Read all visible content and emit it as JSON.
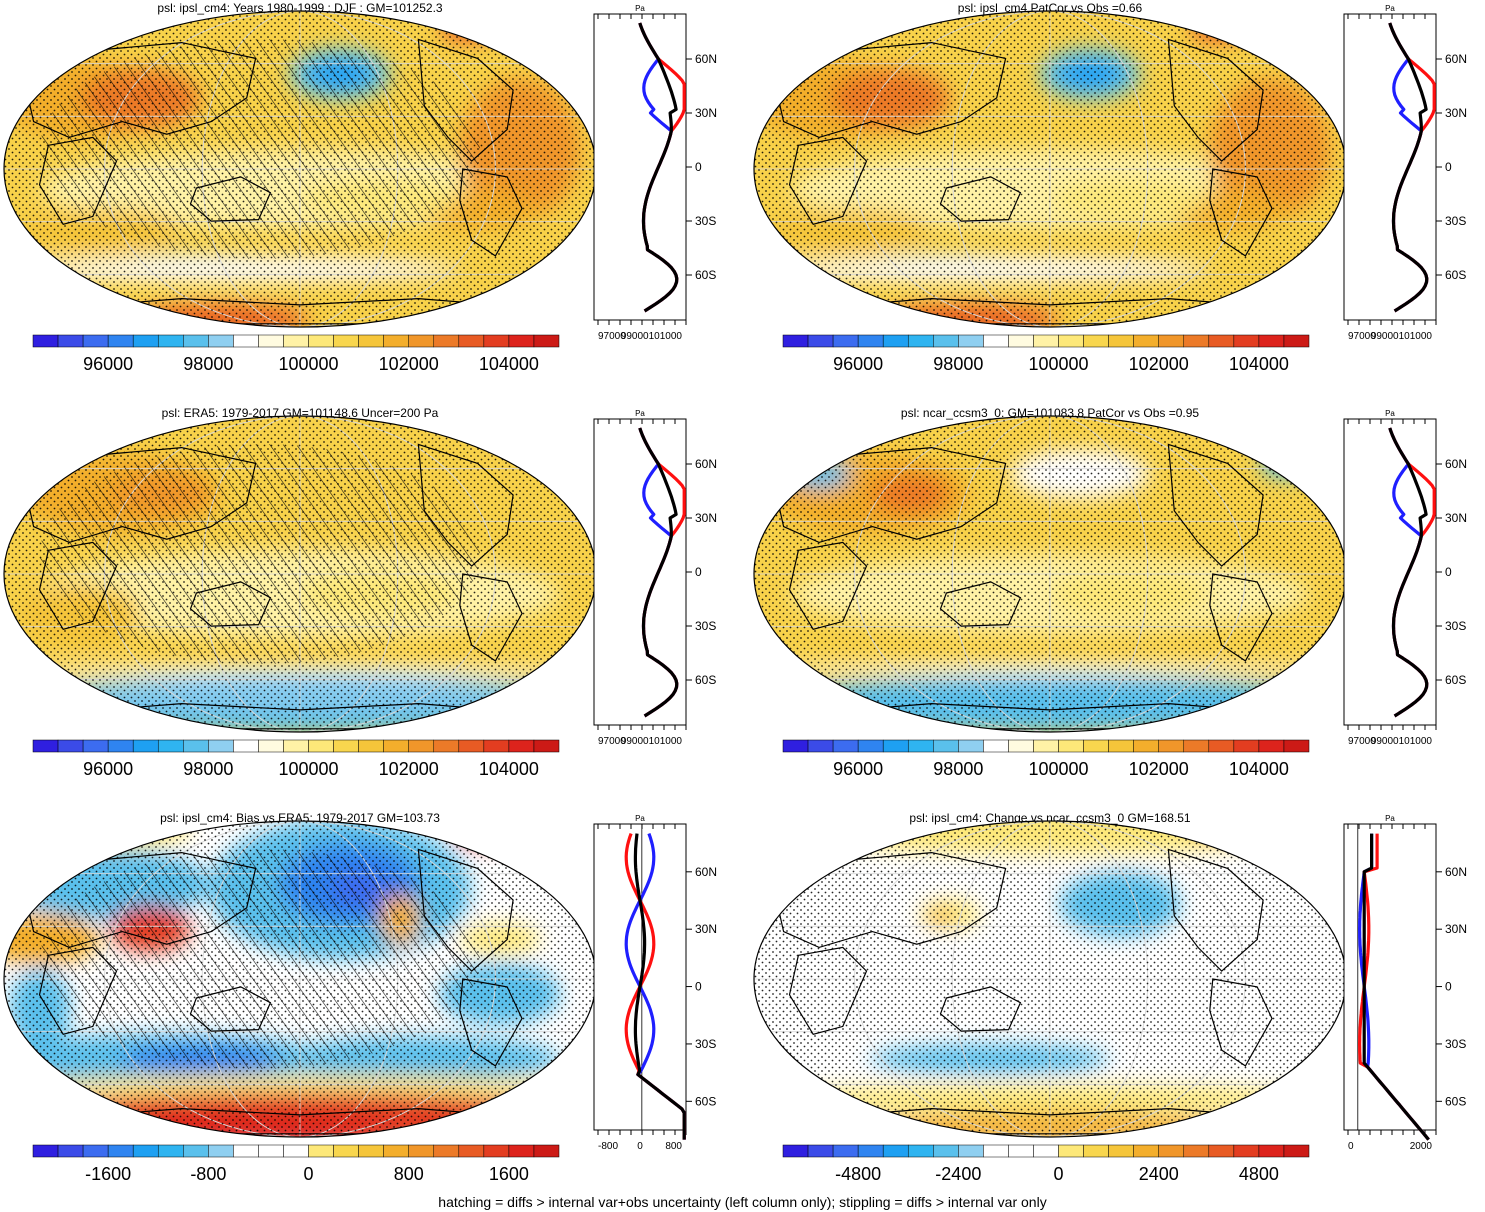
{
  "footnote": "hatching = diffs > internal var+obs uncertainty (left column only); stippling = diffs > internal var only",
  "colors": {
    "blue_line": "#1f1fff",
    "red_line": "#ff1010",
    "black_line": "#000000",
    "land_outline": "#000000"
  },
  "chart_data": [
    {
      "id": "p1",
      "type": "heatmap",
      "title": "psl: ipsl_cm4: Years 1980-1999 : DJF : GM=101252.3",
      "field": "mean",
      "colorbar": {
        "ticks": [
          "96000",
          "98000",
          "100000",
          "102000",
          "104000"
        ],
        "tick_positions": [
          2.5,
          6.5,
          10.5,
          14.5,
          18.5
        ],
        "levels": 21,
        "colors": [
          "#2f1fe0",
          "#3b4be8",
          "#3c6cf0",
          "#2f84f0",
          "#1ea0f2",
          "#2fb4f0",
          "#5ac0ec",
          "#8fcff0",
          "#ffffff",
          "#fffbe0",
          "#fff2a6",
          "#fde879",
          "#f8d64e",
          "#f5c53a",
          "#f3ae2c",
          "#f0962a",
          "#ec7a28",
          "#e85b24",
          "#e33d20",
          "#dd231c",
          "#cc1a16"
        ]
      },
      "hatching": true,
      "profile": {
        "xlabel": "Pa",
        "xticks": [
          "97000",
          "99000101000"
        ],
        "yticks": [
          "60N",
          "30N",
          "0",
          "30S",
          "60S"
        ],
        "ylim": [
          -85,
          85
        ]
      }
    },
    {
      "id": "p2",
      "type": "heatmap",
      "title": "psl: ipsl_cm4 PatCor vs Obs =0.66",
      "field": "mean",
      "colorbar": {
        "ticks": [
          "96000",
          "98000",
          "100000",
          "102000",
          "104000"
        ],
        "tick_positions": [
          2.5,
          6.5,
          10.5,
          14.5,
          18.5
        ],
        "levels": 21,
        "colors": [
          "#2f1fe0",
          "#3b4be8",
          "#3c6cf0",
          "#2f84f0",
          "#1ea0f2",
          "#2fb4f0",
          "#5ac0ec",
          "#8fcff0",
          "#ffffff",
          "#fffbe0",
          "#fff2a6",
          "#fde879",
          "#f8d64e",
          "#f5c53a",
          "#f3ae2c",
          "#f0962a",
          "#ec7a28",
          "#e85b24",
          "#e33d20",
          "#dd231c",
          "#cc1a16"
        ]
      },
      "hatching": false,
      "profile": {
        "xlabel": "Pa",
        "xticks": [
          "97000",
          "99000101000"
        ],
        "yticks": [
          "60N",
          "30N",
          "0",
          "30S",
          "60S"
        ],
        "ylim": [
          -85,
          85
        ]
      }
    },
    {
      "id": "p3",
      "type": "heatmap",
      "title": "psl: ERA5: 1979-2017 GM=101148.6 Uncer=200 Pa",
      "field": "obs",
      "colorbar": {
        "ticks": [
          "96000",
          "98000",
          "100000",
          "102000",
          "104000"
        ],
        "tick_positions": [
          2.5,
          6.5,
          10.5,
          14.5,
          18.5
        ],
        "levels": 21,
        "colors": [
          "#2f1fe0",
          "#3b4be8",
          "#3c6cf0",
          "#2f84f0",
          "#1ea0f2",
          "#2fb4f0",
          "#5ac0ec",
          "#8fcff0",
          "#ffffff",
          "#fffbe0",
          "#fff2a6",
          "#fde879",
          "#f8d64e",
          "#f5c53a",
          "#f3ae2c",
          "#f0962a",
          "#ec7a28",
          "#e85b24",
          "#e33d20",
          "#dd231c",
          "#cc1a16"
        ]
      },
      "hatching": true,
      "profile": {
        "xlabel": "Pa",
        "xticks": [
          "97000",
          "99000101000"
        ],
        "yticks": [
          "60N",
          "30N",
          "0",
          "30S",
          "60S"
        ],
        "ylim": [
          -85,
          85
        ]
      }
    },
    {
      "id": "p4",
      "type": "heatmap",
      "title": "psl: ncar_ccsm3_0: GM=101083.8 PatCor vs Obs =0.95",
      "field": "obs2",
      "colorbar": {
        "ticks": [
          "96000",
          "98000",
          "100000",
          "102000",
          "104000"
        ],
        "tick_positions": [
          2.5,
          6.5,
          10.5,
          14.5,
          18.5
        ],
        "levels": 21,
        "colors": [
          "#2f1fe0",
          "#3b4be8",
          "#3c6cf0",
          "#2f84f0",
          "#1ea0f2",
          "#2fb4f0",
          "#5ac0ec",
          "#8fcff0",
          "#ffffff",
          "#fffbe0",
          "#fff2a6",
          "#fde879",
          "#f8d64e",
          "#f5c53a",
          "#f3ae2c",
          "#f0962a",
          "#ec7a28",
          "#e85b24",
          "#e33d20",
          "#dd231c",
          "#cc1a16"
        ]
      },
      "hatching": false,
      "profile": {
        "xlabel": "Pa",
        "xticks": [
          "97000",
          "99000101000"
        ],
        "yticks": [
          "60N",
          "30N",
          "0",
          "30S",
          "60S"
        ],
        "ylim": [
          -85,
          85
        ]
      }
    },
    {
      "id": "p5",
      "type": "heatmap",
      "title": "psl: ipsl_cm4: Bias vs ERA5: 1979-2017 GM=103.73",
      "field": "bias",
      "colorbar": {
        "ticks": [
          "-1600",
          "-800",
          "0",
          "800",
          "1600"
        ],
        "tick_positions": [
          2.5,
          6.5,
          10.5,
          14.5,
          18.5
        ],
        "levels": 21,
        "colors": [
          "#2f1fe0",
          "#3b4be8",
          "#3c6cf0",
          "#2f84f0",
          "#1ea0f2",
          "#2fb4f0",
          "#5ac0ec",
          "#8fcff0",
          "#ffffff",
          "#ffffff",
          "#ffffff",
          "#fde879",
          "#f8d64e",
          "#f5c53a",
          "#f3ae2c",
          "#f0962a",
          "#ec7a28",
          "#e85b24",
          "#e33d20",
          "#dd231c",
          "#cc1a16"
        ]
      },
      "hatching": true,
      "profile": {
        "xlabel": "Pa",
        "xticks": [
          "-800",
          "0",
          "800"
        ],
        "yticks": [
          "60N",
          "30N",
          "0",
          "30S",
          "60S"
        ],
        "ylim": [
          -75,
          85
        ]
      }
    },
    {
      "id": "p6",
      "type": "heatmap",
      "title": "psl: ipsl_cm4: Change vs ncar_ccsm3_0 GM=168.51",
      "field": "change",
      "colorbar": {
        "ticks": [
          "-4800",
          "-2400",
          "0",
          "2400",
          "4800"
        ],
        "tick_positions": [
          2.5,
          6.5,
          10.5,
          14.5,
          18.5
        ],
        "levels": 21,
        "colors": [
          "#2f1fe0",
          "#3b4be8",
          "#3c6cf0",
          "#2f84f0",
          "#1ea0f2",
          "#2fb4f0",
          "#5ac0ec",
          "#8fcff0",
          "#ffffff",
          "#ffffff",
          "#ffffff",
          "#fde879",
          "#f8d64e",
          "#f5c53a",
          "#f3ae2c",
          "#f0962a",
          "#ec7a28",
          "#e85b24",
          "#e33d20",
          "#dd231c",
          "#cc1a16"
        ]
      },
      "hatching": false,
      "profile": {
        "xlabel": "Pa",
        "xticks": [
          "0",
          "2000"
        ],
        "yticks": [
          "60N",
          "30N",
          "0",
          "30S",
          "60S"
        ],
        "ylim": [
          -75,
          85
        ]
      }
    }
  ]
}
